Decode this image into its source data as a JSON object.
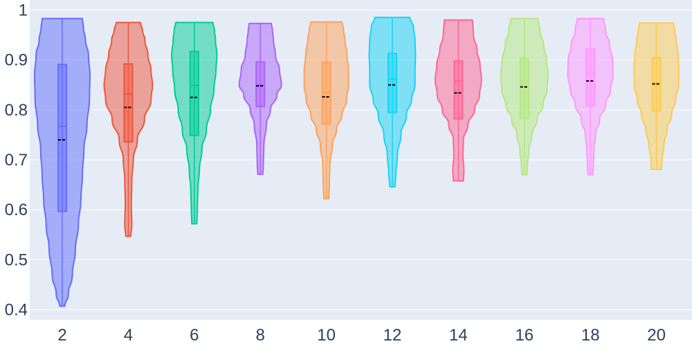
{
  "chart_data": {
    "type": "violin",
    "title": "",
    "xlabel": "",
    "ylabel": "",
    "x_tick_labels": [
      "2",
      "4",
      "6",
      "8",
      "10",
      "12",
      "14",
      "16",
      "18",
      "20"
    ],
    "y_tick_labels": [
      "0.4",
      "0.5",
      "0.6",
      "0.7",
      "0.8",
      "0.9",
      "1"
    ],
    "y_ticks": [
      0.4,
      0.5,
      0.6,
      0.7,
      0.8,
      0.9,
      1.0
    ],
    "ylim": [
      0.38,
      1.02
    ],
    "grid": true,
    "legend": "none",
    "colors": {
      "plot_background": "#e5ecf6",
      "grid": "#ffffff",
      "mean_line": "#000000",
      "text": "#2a3f5f"
    },
    "series": [
      {
        "x": "2",
        "color": "#636efa",
        "min": 0.407,
        "q1": 0.597,
        "median": 0.767,
        "q3": 0.891,
        "max": 0.983,
        "mean": 0.74,
        "density": [
          [
            0.407,
            0.05
          ],
          [
            0.43,
            0.12
          ],
          [
            0.47,
            0.2
          ],
          [
            0.52,
            0.26
          ],
          [
            0.57,
            0.32
          ],
          [
            0.62,
            0.37
          ],
          [
            0.67,
            0.4
          ],
          [
            0.72,
            0.43
          ],
          [
            0.77,
            0.49
          ],
          [
            0.82,
            0.54
          ],
          [
            0.87,
            0.55
          ],
          [
            0.91,
            0.52
          ],
          [
            0.94,
            0.46
          ],
          [
            0.965,
            0.42
          ],
          [
            0.983,
            0.4
          ]
        ]
      },
      {
        "x": "4",
        "color": "#ef553b",
        "min": 0.547,
        "q1": 0.736,
        "median": 0.832,
        "q3": 0.892,
        "max": 0.975,
        "mean": 0.805,
        "density": [
          [
            0.547,
            0.05
          ],
          [
            0.57,
            0.07
          ],
          [
            0.61,
            0.06
          ],
          [
            0.66,
            0.07
          ],
          [
            0.7,
            0.1
          ],
          [
            0.74,
            0.18
          ],
          [
            0.78,
            0.32
          ],
          [
            0.82,
            0.45
          ],
          [
            0.85,
            0.48
          ],
          [
            0.88,
            0.45
          ],
          [
            0.91,
            0.39
          ],
          [
            0.94,
            0.33
          ],
          [
            0.96,
            0.28
          ],
          [
            0.975,
            0.24
          ]
        ]
      },
      {
        "x": "6",
        "color": "#00cc96",
        "min": 0.572,
        "q1": 0.749,
        "median": 0.849,
        "q3": 0.917,
        "max": 0.975,
        "mean": 0.825,
        "density": [
          [
            0.572,
            0.05
          ],
          [
            0.6,
            0.06
          ],
          [
            0.64,
            0.07
          ],
          [
            0.68,
            0.1
          ],
          [
            0.72,
            0.15
          ],
          [
            0.76,
            0.24
          ],
          [
            0.8,
            0.32
          ],
          [
            0.84,
            0.39
          ],
          [
            0.88,
            0.43
          ],
          [
            0.91,
            0.45
          ],
          [
            0.94,
            0.42
          ],
          [
            0.96,
            0.4
          ],
          [
            0.975,
            0.37
          ]
        ]
      },
      {
        "x": "8",
        "color": "#ab63fa",
        "min": 0.671,
        "q1": 0.807,
        "median": 0.85,
        "q3": 0.896,
        "max": 0.973,
        "mean": 0.848,
        "density": [
          [
            0.671,
            0.05
          ],
          [
            0.69,
            0.06
          ],
          [
            0.73,
            0.07
          ],
          [
            0.77,
            0.12
          ],
          [
            0.8,
            0.2
          ],
          [
            0.83,
            0.33
          ],
          [
            0.85,
            0.42
          ],
          [
            0.88,
            0.38
          ],
          [
            0.91,
            0.3
          ],
          [
            0.94,
            0.26
          ],
          [
            0.96,
            0.24
          ],
          [
            0.973,
            0.22
          ]
        ]
      },
      {
        "x": "10",
        "color": "#ffa15a",
        "min": 0.622,
        "q1": 0.772,
        "median": 0.835,
        "q3": 0.895,
        "max": 0.976,
        "mean": 0.826,
        "density": [
          [
            0.622,
            0.05
          ],
          [
            0.65,
            0.06
          ],
          [
            0.69,
            0.07
          ],
          [
            0.73,
            0.12
          ],
          [
            0.76,
            0.2
          ],
          [
            0.79,
            0.31
          ],
          [
            0.82,
            0.4
          ],
          [
            0.85,
            0.44
          ],
          [
            0.88,
            0.44
          ],
          [
            0.91,
            0.41
          ],
          [
            0.94,
            0.37
          ],
          [
            0.96,
            0.34
          ],
          [
            0.976,
            0.31
          ]
        ]
      },
      {
        "x": "12",
        "color": "#19d3f3",
        "min": 0.646,
        "q1": 0.795,
        "median": 0.862,
        "q3": 0.913,
        "max": 0.985,
        "mean": 0.85,
        "density": [
          [
            0.646,
            0.05
          ],
          [
            0.67,
            0.07
          ],
          [
            0.71,
            0.1
          ],
          [
            0.75,
            0.17
          ],
          [
            0.79,
            0.28
          ],
          [
            0.82,
            0.38
          ],
          [
            0.85,
            0.45
          ],
          [
            0.88,
            0.45
          ],
          [
            0.91,
            0.46
          ],
          [
            0.94,
            0.45
          ],
          [
            0.965,
            0.42
          ],
          [
            0.985,
            0.35
          ]
        ]
      },
      {
        "x": "14",
        "color": "#ff6692",
        "min": 0.658,
        "q1": 0.782,
        "median": 0.858,
        "q3": 0.898,
        "max": 0.98,
        "mean": 0.834,
        "density": [
          [
            0.658,
            0.1
          ],
          [
            0.68,
            0.11
          ],
          [
            0.71,
            0.09
          ],
          [
            0.74,
            0.1
          ],
          [
            0.77,
            0.19
          ],
          [
            0.8,
            0.32
          ],
          [
            0.83,
            0.42
          ],
          [
            0.86,
            0.46
          ],
          [
            0.89,
            0.43
          ],
          [
            0.92,
            0.37
          ],
          [
            0.95,
            0.3
          ],
          [
            0.98,
            0.28
          ]
        ]
      },
      {
        "x": "16",
        "color": "#b6e880",
        "min": 0.67,
        "q1": 0.783,
        "median": 0.858,
        "q3": 0.903,
        "max": 0.983,
        "mean": 0.846,
        "density": [
          [
            0.67,
            0.05
          ],
          [
            0.69,
            0.06
          ],
          [
            0.72,
            0.09
          ],
          [
            0.75,
            0.15
          ],
          [
            0.78,
            0.25
          ],
          [
            0.81,
            0.37
          ],
          [
            0.84,
            0.45
          ],
          [
            0.87,
            0.47
          ],
          [
            0.9,
            0.44
          ],
          [
            0.93,
            0.38
          ],
          [
            0.96,
            0.31
          ],
          [
            0.983,
            0.27
          ]
        ]
      },
      {
        "x": "18",
        "color": "#ff97ff",
        "min": 0.67,
        "q1": 0.808,
        "median": 0.874,
        "q3": 0.922,
        "max": 0.983,
        "mean": 0.858,
        "density": [
          [
            0.67,
            0.05
          ],
          [
            0.69,
            0.06
          ],
          [
            0.72,
            0.07
          ],
          [
            0.75,
            0.1
          ],
          [
            0.78,
            0.18
          ],
          [
            0.81,
            0.3
          ],
          [
            0.84,
            0.4
          ],
          [
            0.87,
            0.45
          ],
          [
            0.9,
            0.44
          ],
          [
            0.93,
            0.38
          ],
          [
            0.96,
            0.3
          ],
          [
            0.983,
            0.26
          ]
        ]
      },
      {
        "x": "20",
        "color": "#fecb52",
        "min": 0.681,
        "q1": 0.798,
        "median": 0.855,
        "q3": 0.905,
        "max": 0.974,
        "mean": 0.852,
        "density": [
          [
            0.681,
            0.1
          ],
          [
            0.7,
            0.11
          ],
          [
            0.73,
            0.15
          ],
          [
            0.76,
            0.21
          ],
          [
            0.79,
            0.3
          ],
          [
            0.82,
            0.38
          ],
          [
            0.85,
            0.44
          ],
          [
            0.88,
            0.45
          ],
          [
            0.91,
            0.43
          ],
          [
            0.94,
            0.39
          ],
          [
            0.96,
            0.36
          ],
          [
            0.974,
            0.34
          ]
        ]
      }
    ]
  }
}
